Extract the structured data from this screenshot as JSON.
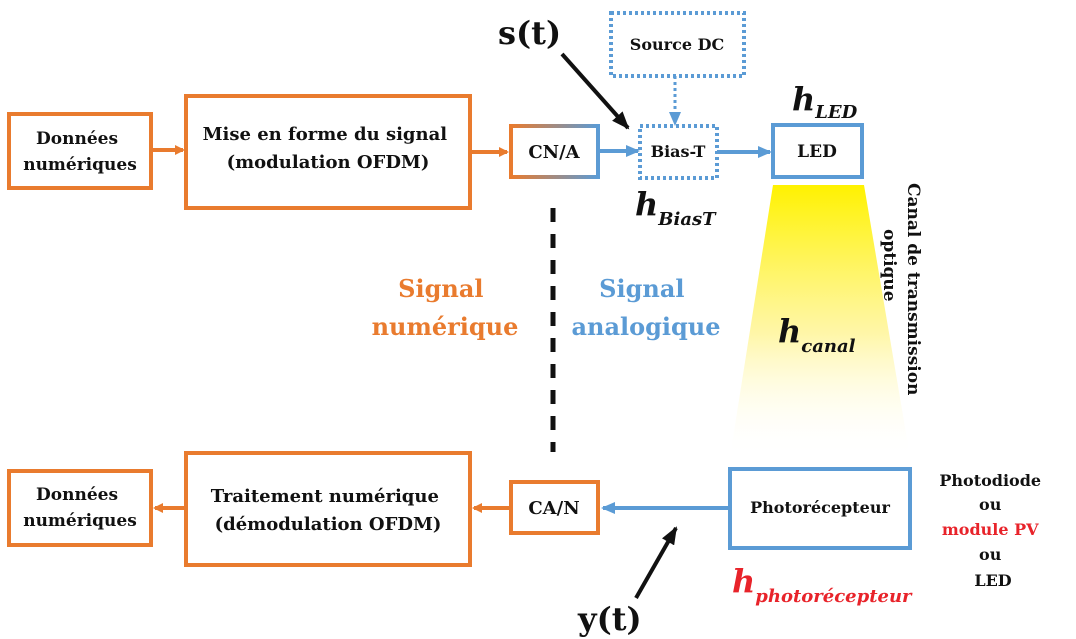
{
  "colors": {
    "orange": "#E97B2E",
    "blue": "#5B9BD5",
    "red": "#E8232A",
    "yellow": "#FFF200",
    "black": "#111111"
  },
  "tx": {
    "donnees_line1": "Données",
    "donnees_line2": "numériques",
    "mise_line1": "Mise en forme du signal",
    "mise_line2": "(modulation OFDM)",
    "cna": "CN/A",
    "bias": "Bias-T",
    "source": "Source DC",
    "led": "LED",
    "st": "s(t)",
    "h": "h",
    "h_led_sub": "LED",
    "h_bias_sub": "BiasT",
    "h_canal_sub": "canal",
    "h_photo_sub": "photorécepteur",
    "canal_line1": "Canal de transmission",
    "canal_line2": "optique"
  },
  "rx": {
    "donnees_line1": "Données",
    "donnees_line2": "numériques",
    "trait_line1": "Traitement numérique",
    "trait_line2": "(démodulation OFDM)",
    "can": "CA/N",
    "photo": "Photorécepteur",
    "yt": "y(t)",
    "alt1": "Photodiode",
    "or1": "ou",
    "alt2": "module PV",
    "or2": "ou",
    "alt3": "LED"
  },
  "domains": {
    "num_line1": "Signal",
    "num_line2": "numérique",
    "ana_line1": "Signal",
    "ana_line2": "analogique"
  }
}
